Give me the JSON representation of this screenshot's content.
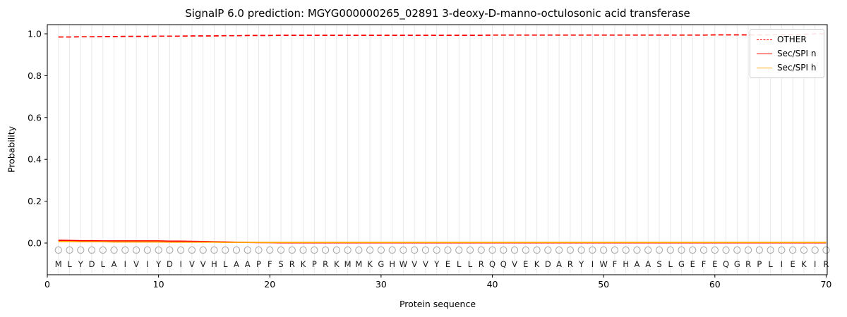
{
  "colors": {
    "grid": "#e8e8e8",
    "axis": "#000000",
    "marker": "#a3a3a3",
    "letter": "#1a1a1a",
    "red": "#ff0000",
    "orange": "#ffa500"
  },
  "chart_data": {
    "type": "line",
    "title": "SignalP 6.0 prediction: MGYG000000265_02891 3-deoxy-D-manno-octulosonic acid transferase",
    "xlabel": "Protein sequence",
    "ylabel": "Probability",
    "xlim": [
      0,
      70.1
    ],
    "ylim": [
      -0.15,
      1.05
    ],
    "x_ticks": [
      0,
      10,
      20,
      30,
      40,
      50,
      60,
      70
    ],
    "y_ticks": [
      0.0,
      0.2,
      0.4,
      0.6,
      0.8,
      1.0
    ],
    "y_tick_labels": [
      "0.0",
      "0.2",
      "0.4",
      "0.6",
      "0.8",
      "1.0"
    ],
    "grid": "vertical line at every residue position",
    "legend_position": "upper right",
    "sequence": "MLYDLAIVIYDIVVHLAAPFSRKPRKMMKGHWVVYELLRQQVEKDARYIWFHAASLGEFEQGRPLIEKIR",
    "sequence_marker": "O",
    "series": [
      {
        "name": "OTHER",
        "color": "#ff0000",
        "style": "dashed",
        "values": [
          0.985,
          0.985,
          0.986,
          0.986,
          0.987,
          0.987,
          0.988,
          0.988,
          0.988,
          0.989,
          0.989,
          0.989,
          0.99,
          0.99,
          0.99,
          0.991,
          0.991,
          0.992,
          0.992,
          0.992,
          0.993,
          0.993,
          0.993,
          0.993,
          0.993,
          0.993,
          0.993,
          0.993,
          0.993,
          0.993,
          0.993,
          0.993,
          0.993,
          0.993,
          0.993,
          0.993,
          0.993,
          0.993,
          0.993,
          0.994,
          0.994,
          0.994,
          0.994,
          0.994,
          0.994,
          0.994,
          0.994,
          0.994,
          0.994,
          0.994,
          0.994,
          0.994,
          0.994,
          0.994,
          0.994,
          0.994,
          0.994,
          0.994,
          0.994,
          0.995,
          0.995,
          0.995,
          0.995,
          0.995,
          0.995,
          0.996,
          0.997,
          0.998,
          1.0,
          1.0
        ]
      },
      {
        "name": "Sec/SPI n",
        "color": "#ff0000",
        "style": "solid",
        "values": [
          0.013,
          0.012,
          0.011,
          0.011,
          0.01,
          0.01,
          0.01,
          0.01,
          0.01,
          0.01,
          0.009,
          0.009,
          0.008,
          0.007,
          0.006,
          0.005,
          0.004,
          0.003,
          0.002,
          0.002,
          0.001,
          0.001,
          0.001,
          0.001,
          0.001,
          0.001,
          0.001,
          0.001,
          0.001,
          0.001,
          0.001,
          0.001,
          0.001,
          0.001,
          0.001,
          0.001,
          0.001,
          0.001,
          0.001,
          0.001,
          0.001,
          0.001,
          0.001,
          0.001,
          0.001,
          0.001,
          0.001,
          0.001,
          0.001,
          0.001,
          0.001,
          0.001,
          0.001,
          0.001,
          0.001,
          0.001,
          0.001,
          0.001,
          0.001,
          0.001,
          0.001,
          0.001,
          0.001,
          0.001,
          0.001,
          0.001,
          0.001,
          0.001,
          0.001,
          0.001
        ]
      },
      {
        "name": "Sec/SPI h",
        "color": "#ffa500",
        "style": "solid",
        "values": [
          0.007,
          0.007,
          0.006,
          0.006,
          0.006,
          0.005,
          0.005,
          0.005,
          0.005,
          0.005,
          0.004,
          0.004,
          0.004,
          0.004,
          0.004,
          0.003,
          0.003,
          0.003,
          0.003,
          0.003,
          0.003,
          0.003,
          0.003,
          0.003,
          0.003,
          0.003,
          0.003,
          0.003,
          0.003,
          0.003,
          0.003,
          0.003,
          0.003,
          0.003,
          0.003,
          0.003,
          0.003,
          0.003,
          0.003,
          0.003,
          0.003,
          0.003,
          0.003,
          0.003,
          0.003,
          0.003,
          0.003,
          0.003,
          0.003,
          0.003,
          0.003,
          0.003,
          0.003,
          0.003,
          0.003,
          0.003,
          0.003,
          0.003,
          0.003,
          0.003,
          0.003,
          0.003,
          0.003,
          0.003,
          0.003,
          0.003,
          0.003,
          0.003,
          0.003,
          0.003
        ]
      }
    ]
  }
}
